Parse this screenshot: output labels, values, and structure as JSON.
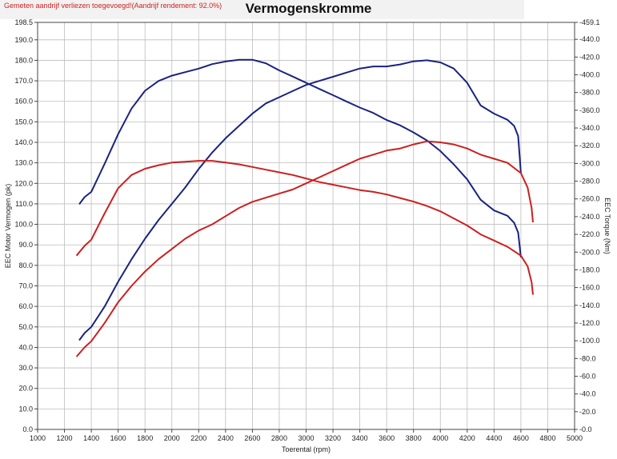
{
  "header": {
    "notice": "Gemeten aandrijf verliezen toegevoegd!(Aandrijf rendement: 92.0%)"
  },
  "chart_data": {
    "type": "line",
    "title": "Vermogenskromme",
    "xlabel": "Toerental (rpm)",
    "ylabel_left": "EEC Motor Vermogen (pk)",
    "ylabel_right": "EEC Torque (Nm)",
    "xlim": [
      1000,
      5000
    ],
    "ylim_left": [
      0,
      198.5
    ],
    "ylim_right": [
      0,
      459.1
    ],
    "grid": true,
    "x_ticks": [
      1000,
      1200,
      1400,
      1600,
      1800,
      2000,
      2200,
      2400,
      2600,
      2800,
      3000,
      3200,
      3400,
      3600,
      3800,
      4000,
      4200,
      4400,
      4600,
      4800,
      5000
    ],
    "y_left_ticks": [
      "0.0",
      "10.0",
      "20.0",
      "30.0",
      "40.0",
      "50.0",
      "60.0",
      "70.0",
      "80.0",
      "90.0",
      "100.0",
      "110.0",
      "120.0",
      "130.0",
      "140.0",
      "150.0",
      "160.0",
      "170.0",
      "180.0",
      "190.0",
      "198.5"
    ],
    "y_right_ticks": [
      "0.0",
      "20.0",
      "40.0",
      "60.0",
      "80.0",
      "100.0",
      "120.0",
      "140.0",
      "160.0",
      "180.0",
      "200.0",
      "220.0",
      "240.0",
      "260.0",
      "280.0",
      "300.0",
      "320.0",
      "340.0",
      "360.0",
      "380.0",
      "400.0",
      "420.0",
      "440.0",
      "459.1"
    ],
    "series": [
      {
        "axis": "left",
        "color": "#1a237e",
        "values": [
          [
            1310,
            43.5
          ],
          [
            1350,
            47
          ],
          [
            1400,
            50
          ],
          [
            1500,
            60
          ],
          [
            1600,
            72
          ],
          [
            1700,
            83
          ],
          [
            1800,
            93
          ],
          [
            1900,
            102
          ],
          [
            2000,
            110
          ],
          [
            2100,
            118
          ],
          [
            2200,
            127
          ],
          [
            2300,
            135
          ],
          [
            2400,
            142
          ],
          [
            2500,
            148
          ],
          [
            2600,
            154
          ],
          [
            2700,
            159
          ],
          [
            2800,
            162
          ],
          [
            2900,
            165
          ],
          [
            3000,
            168
          ],
          [
            3100,
            170
          ],
          [
            3200,
            172
          ],
          [
            3300,
            174
          ],
          [
            3400,
            176
          ],
          [
            3500,
            177
          ],
          [
            3600,
            177
          ],
          [
            3700,
            178
          ],
          [
            3800,
            179.5
          ],
          [
            3900,
            180
          ],
          [
            4000,
            179
          ],
          [
            4100,
            176
          ],
          [
            4200,
            169
          ],
          [
            4300,
            158
          ],
          [
            4400,
            154
          ],
          [
            4500,
            151
          ],
          [
            4550,
            148
          ],
          [
            4580,
            143
          ],
          [
            4600,
            125
          ]
        ]
      },
      {
        "axis": "right",
        "color": "#1a237e",
        "values": [
          [
            1310,
            254
          ],
          [
            1350,
            262
          ],
          [
            1400,
            268
          ],
          [
            1500,
            300
          ],
          [
            1600,
            333
          ],
          [
            1700,
            362
          ],
          [
            1800,
            382
          ],
          [
            1900,
            393
          ],
          [
            2000,
            399
          ],
          [
            2100,
            403
          ],
          [
            2200,
            407
          ],
          [
            2300,
            412
          ],
          [
            2400,
            415
          ],
          [
            2500,
            417
          ],
          [
            2600,
            417
          ],
          [
            2700,
            413
          ],
          [
            2800,
            405
          ],
          [
            2900,
            398
          ],
          [
            3000,
            391
          ],
          [
            3100,
            384
          ],
          [
            3200,
            377
          ],
          [
            3300,
            370
          ],
          [
            3400,
            363
          ],
          [
            3500,
            357
          ],
          [
            3600,
            349
          ],
          [
            3700,
            343
          ],
          [
            3800,
            335
          ],
          [
            3900,
            326
          ],
          [
            4000,
            314
          ],
          [
            4100,
            299
          ],
          [
            4200,
            282
          ],
          [
            4300,
            259
          ],
          [
            4400,
            247
          ],
          [
            4500,
            241
          ],
          [
            4550,
            233
          ],
          [
            4580,
            222
          ],
          [
            4600,
            194
          ]
        ]
      },
      {
        "axis": "left",
        "color": "#cc1f1f",
        "values": [
          [
            1290,
            35.5
          ],
          [
            1350,
            40
          ],
          [
            1400,
            43
          ],
          [
            1500,
            52
          ],
          [
            1600,
            62
          ],
          [
            1700,
            70
          ],
          [
            1800,
            77
          ],
          [
            1900,
            83
          ],
          [
            2000,
            88
          ],
          [
            2100,
            93
          ],
          [
            2200,
            97
          ],
          [
            2300,
            100
          ],
          [
            2400,
            104
          ],
          [
            2500,
            108
          ],
          [
            2600,
            111
          ],
          [
            2700,
            113
          ],
          [
            2800,
            115
          ],
          [
            2900,
            117
          ],
          [
            3000,
            120
          ],
          [
            3100,
            123
          ],
          [
            3200,
            126
          ],
          [
            3300,
            129
          ],
          [
            3400,
            132
          ],
          [
            3500,
            134
          ],
          [
            3600,
            136
          ],
          [
            3700,
            137
          ],
          [
            3800,
            139
          ],
          [
            3900,
            140.5
          ],
          [
            4000,
            140
          ],
          [
            4100,
            139
          ],
          [
            4200,
            137
          ],
          [
            4300,
            134
          ],
          [
            4400,
            132
          ],
          [
            4500,
            130
          ],
          [
            4600,
            125
          ],
          [
            4650,
            118
          ],
          [
            4680,
            108
          ],
          [
            4690,
            101
          ]
        ]
      },
      {
        "axis": "right",
        "color": "#cc1f1f",
        "values": [
          [
            1290,
            196
          ],
          [
            1350,
            207
          ],
          [
            1400,
            214
          ],
          [
            1500,
            244
          ],
          [
            1600,
            272
          ],
          [
            1700,
            287
          ],
          [
            1800,
            294
          ],
          [
            1900,
            298
          ],
          [
            2000,
            301
          ],
          [
            2100,
            302
          ],
          [
            2200,
            303
          ],
          [
            2300,
            303
          ],
          [
            2400,
            301
          ],
          [
            2500,
            299
          ],
          [
            2600,
            296
          ],
          [
            2700,
            293
          ],
          [
            2800,
            290
          ],
          [
            2900,
            287
          ],
          [
            3000,
            283
          ],
          [
            3100,
            279
          ],
          [
            3200,
            276
          ],
          [
            3300,
            273
          ],
          [
            3400,
            270
          ],
          [
            3500,
            268
          ],
          [
            3600,
            265
          ],
          [
            3700,
            261
          ],
          [
            3800,
            257
          ],
          [
            3900,
            252
          ],
          [
            4000,
            246
          ],
          [
            4100,
            238
          ],
          [
            4200,
            230
          ],
          [
            4300,
            220
          ],
          [
            4400,
            213
          ],
          [
            4500,
            206
          ],
          [
            4600,
            196
          ],
          [
            4650,
            184
          ],
          [
            4680,
            166
          ],
          [
            4690,
            152
          ]
        ]
      }
    ]
  }
}
